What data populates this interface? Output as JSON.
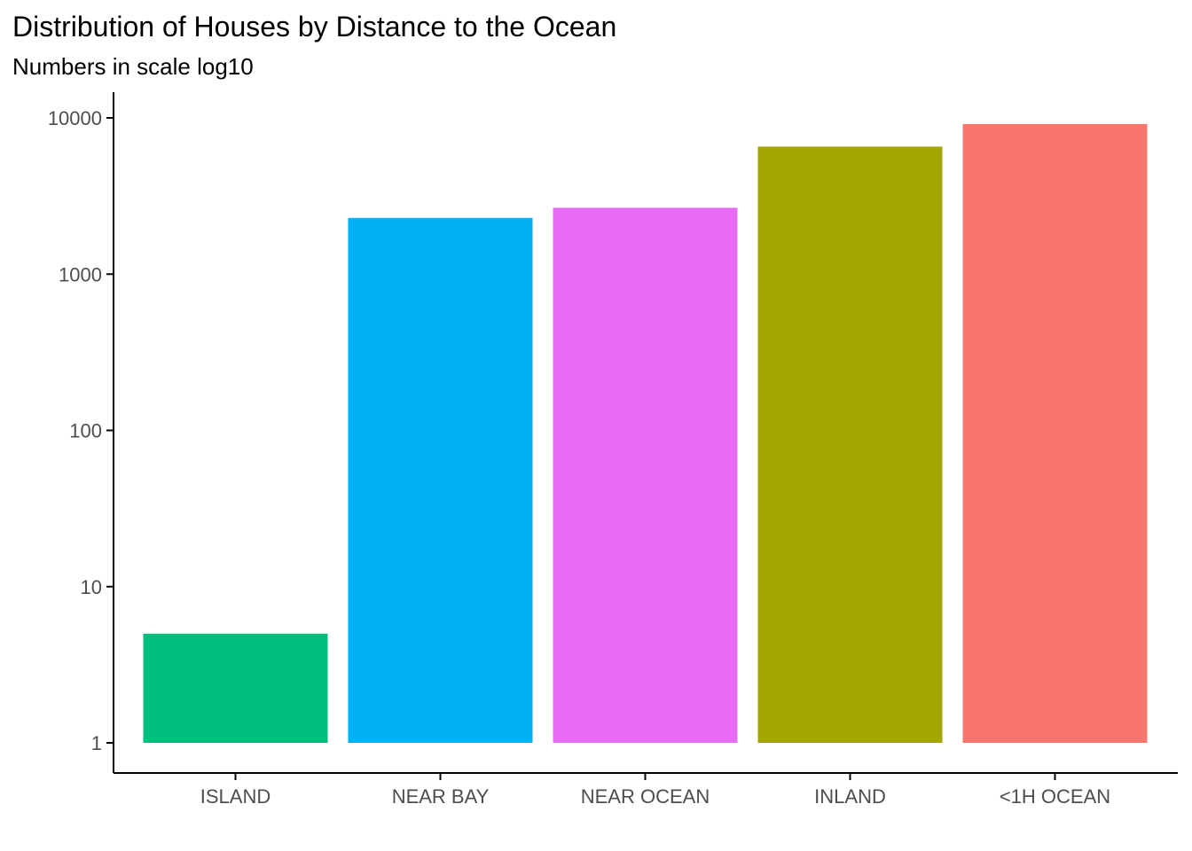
{
  "chart_data": {
    "type": "bar",
    "title": "Distribution of Houses by Distance to the Ocean",
    "subtitle": "Numbers in scale log10",
    "xlabel": "",
    "ylabel": "",
    "y_scale": "log10",
    "ylim": [
      1,
      10000
    ],
    "y_ticks": [
      1,
      10,
      100,
      1000,
      10000
    ],
    "y_tick_labels": [
      "1",
      "10",
      "100",
      "1000",
      "10000"
    ],
    "categories": [
      "ISLAND",
      "NEAR BAY",
      "NEAR OCEAN",
      "INLAND",
      "<1H OCEAN"
    ],
    "values": [
      5,
      2290,
      2658,
      6551,
      9136
    ],
    "colors": [
      "#00BF7D",
      "#00B0F6",
      "#E76BF3",
      "#A3A500",
      "#F8766D"
    ],
    "grid": false,
    "legend": "none"
  }
}
